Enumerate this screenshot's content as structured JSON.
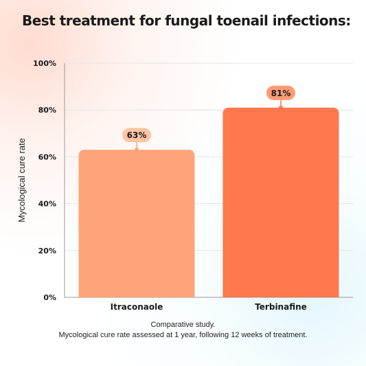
{
  "title": "Best treatment for fungal toenail infections:",
  "chart_data": {
    "type": "bar",
    "title": "Best treatment for fungal toenail infections:",
    "categories": [
      "Itraconaole",
      "Terbinafine"
    ],
    "values": [
      63,
      81
    ],
    "value_labels": [
      "63%",
      "81%"
    ],
    "ylabel": "Mycological cure rate",
    "xlabel": "",
    "ylim": [
      0,
      100
    ],
    "yticks": [
      0,
      20,
      40,
      60,
      80,
      100
    ],
    "ytick_labels": [
      "0%",
      "20%",
      "40%",
      "60%",
      "80%",
      "100%"
    ],
    "grid": true,
    "legend": "none",
    "colors": [
      "#FFA47A",
      "#FF774C"
    ],
    "label_badge_colors": [
      "#FFC5A4",
      "#FF9B74"
    ]
  },
  "footnote": {
    "line1": "Comparative study.",
    "line2": "Mycological cure rate assessed at 1 year, following 12 weeks of treatment."
  }
}
